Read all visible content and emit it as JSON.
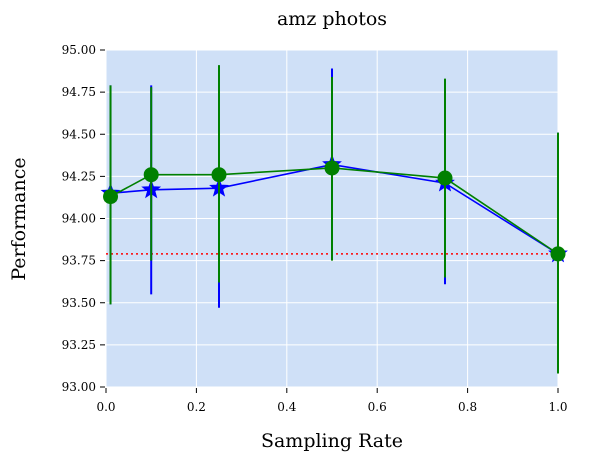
{
  "chart_data": {
    "type": "line",
    "title": "amz photos",
    "xlabel": "Sampling Rate",
    "ylabel": "Performance",
    "xlim": [
      0.0,
      1.0
    ],
    "ylim": [
      93.0,
      95.0
    ],
    "xticks": [
      "0.0",
      "0.2",
      "0.4",
      "0.6",
      "0.8",
      "1.0"
    ],
    "yticks": [
      "93.00",
      "93.25",
      "93.50",
      "93.75",
      "94.00",
      "94.25",
      "94.50",
      "94.75",
      "95.00"
    ],
    "grid": true,
    "background_color": "#cfe0f7",
    "series": [
      {
        "color": "#0000ff",
        "marker": "star",
        "x": [
          0.01,
          0.1,
          0.25,
          0.5,
          0.75,
          1.0
        ],
        "y": [
          94.15,
          94.17,
          94.18,
          94.32,
          94.21,
          93.79
        ],
        "err_low": [
          93.49,
          93.55,
          93.47,
          93.76,
          93.61,
          93.08
        ],
        "err_high": [
          94.79,
          94.79,
          94.62,
          94.89,
          94.82,
          94.51
        ]
      },
      {
        "color": "#008000",
        "marker": "circle",
        "x": [
          0.01,
          0.1,
          0.25,
          0.5,
          0.75,
          1.0
        ],
        "y": [
          94.13,
          94.26,
          94.26,
          94.3,
          94.24,
          93.79
        ],
        "err_low": [
          93.49,
          93.75,
          93.62,
          93.75,
          93.65,
          93.08
        ],
        "err_high": [
          94.79,
          94.78,
          94.91,
          94.84,
          94.83,
          94.51
        ]
      }
    ],
    "reference_line": {
      "y": 93.79,
      "color": "#ff0000",
      "style": "dotted"
    }
  }
}
